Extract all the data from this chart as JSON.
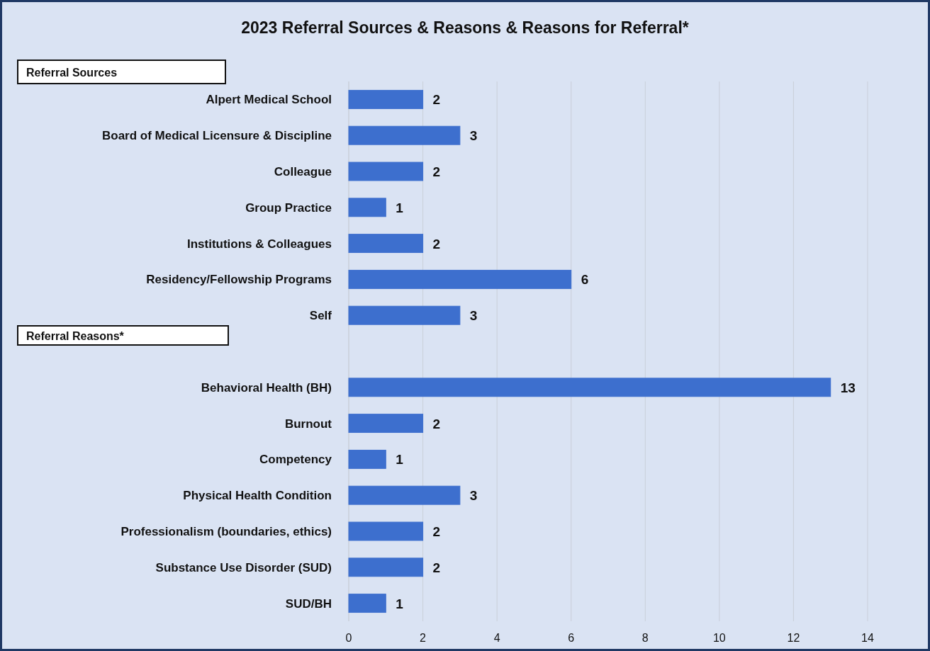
{
  "chart_data": {
    "type": "bar",
    "orientation": "horizontal",
    "title": "2023 Referral Sources & Reasons & Reasons for Referral*",
    "categories": [
      "Alpert Medical School",
      "Board of Medical Licensure & Discipline",
      "Colleague",
      "Group Practice",
      "Institutions & Colleagues",
      "Residency/Fellowship Programs",
      "Self",
      null,
      "Behavioral Health (BH)",
      "Burnout",
      "Competency",
      "Physical Health Condition",
      "Professionalism (boundaries, ethics)",
      "Substance Use Disorder (SUD)",
      "SUD/BH"
    ],
    "values": [
      2,
      3,
      2,
      1,
      2,
      6,
      3,
      null,
      13,
      2,
      1,
      3,
      2,
      2,
      1
    ],
    "color": "#3d6fce",
    "xlim": [
      0,
      14
    ],
    "xticks": [
      0,
      2,
      4,
      6,
      8,
      10,
      12,
      14
    ],
    "grid": "x",
    "data_labels": true,
    "annotations": [
      "Referral Sources",
      "Referral Reasons*"
    ]
  }
}
